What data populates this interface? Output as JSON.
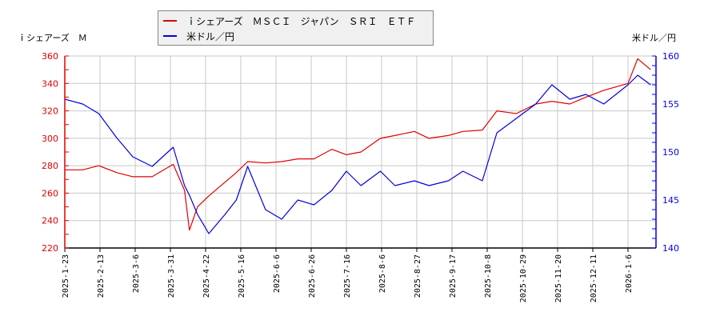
{
  "legend": {
    "series1_label": "ｉシェアーズ　ＭＳＣＩ　ジャパン　ＳＲＩ　ＥＴＦ",
    "series2_label": "米ドル／円"
  },
  "axes": {
    "left_title": "ｉシェアーズ　Ｍ",
    "right_title": "米ドル／円"
  },
  "colors": {
    "series1": "#e00000",
    "series2": "#0000e0",
    "grid": "#c8c8c8",
    "legend_bg": "#f0f0f0"
  },
  "chart_data": {
    "type": "line",
    "title": "",
    "xlabel": "",
    "ylabel_left": "ｉシェアーズ　Ｍ",
    "ylabel_right": "米ドル／円",
    "ylim_left": [
      220,
      360
    ],
    "ylim_right": [
      140,
      160
    ],
    "yticks_left": [
      220,
      240,
      260,
      280,
      300,
      320,
      340,
      360
    ],
    "yticks_right": [
      140,
      145,
      150,
      155,
      160
    ],
    "grid": true,
    "legend_position": "top",
    "x_tick_labels": [
      "2025-1-23",
      "2025-2-13",
      "2025-3-6",
      "2025-3-31",
      "2025-4-22",
      "2025-5-16",
      "2025-6-6",
      "2025-6-26",
      "2025-7-16",
      "2025-8-6",
      "2025-8-27",
      "2025-9-17",
      "2025-10-8",
      "2025-10-29",
      "2025-11-20",
      "2025-12-11",
      "2026-1-6"
    ],
    "x": [
      "2025-1-23",
      "2025-2-3",
      "2025-2-13",
      "2025-2-24",
      "2025-3-6",
      "2025-3-18",
      "2025-3-31",
      "2025-4-7",
      "2025-4-10",
      "2025-4-15",
      "2025-4-22",
      "2025-5-2",
      "2025-5-9",
      "2025-5-16",
      "2025-5-27",
      "2025-6-6",
      "2025-6-16",
      "2025-6-26",
      "2025-7-7",
      "2025-7-16",
      "2025-7-25",
      "2025-8-6",
      "2025-8-15",
      "2025-8-27",
      "2025-9-5",
      "2025-9-17",
      "2025-9-26",
      "2025-10-8",
      "2025-10-17",
      "2025-10-29",
      "2025-11-10",
      "2025-11-20",
      "2025-12-1",
      "2025-12-11",
      "2025-12-22",
      "2026-1-6",
      "2026-1-12",
      "2026-1-20"
    ],
    "series": [
      {
        "name": "ｉシェアーズ　ＭＳＣＩ　ジャパン　ＳＲＩ　ＥＴＦ",
        "axis": "left",
        "values": [
          277,
          277,
          280,
          275,
          272,
          272,
          281,
          262,
          233,
          250,
          258,
          268,
          275,
          283,
          282,
          283,
          285,
          285,
          292,
          288,
          290,
          300,
          302,
          305,
          300,
          302,
          305,
          306,
          320,
          318,
          325,
          327,
          325,
          330,
          335,
          340,
          358,
          350
        ]
      },
      {
        "name": "米ドル／円",
        "axis": "right",
        "values": [
          155.5,
          155.0,
          154.0,
          151.5,
          149.5,
          148.5,
          150.5,
          146.5,
          145.5,
          143.5,
          141.5,
          143.5,
          145.0,
          148.5,
          144.0,
          143.0,
          145.0,
          144.5,
          146.0,
          148.0,
          146.5,
          148.0,
          146.5,
          147.0,
          146.5,
          147.0,
          148.0,
          147.0,
          152.0,
          153.5,
          155.0,
          157.0,
          155.5,
          156.0,
          155.0,
          157.0,
          158.0,
          157.0
        ]
      }
    ]
  }
}
